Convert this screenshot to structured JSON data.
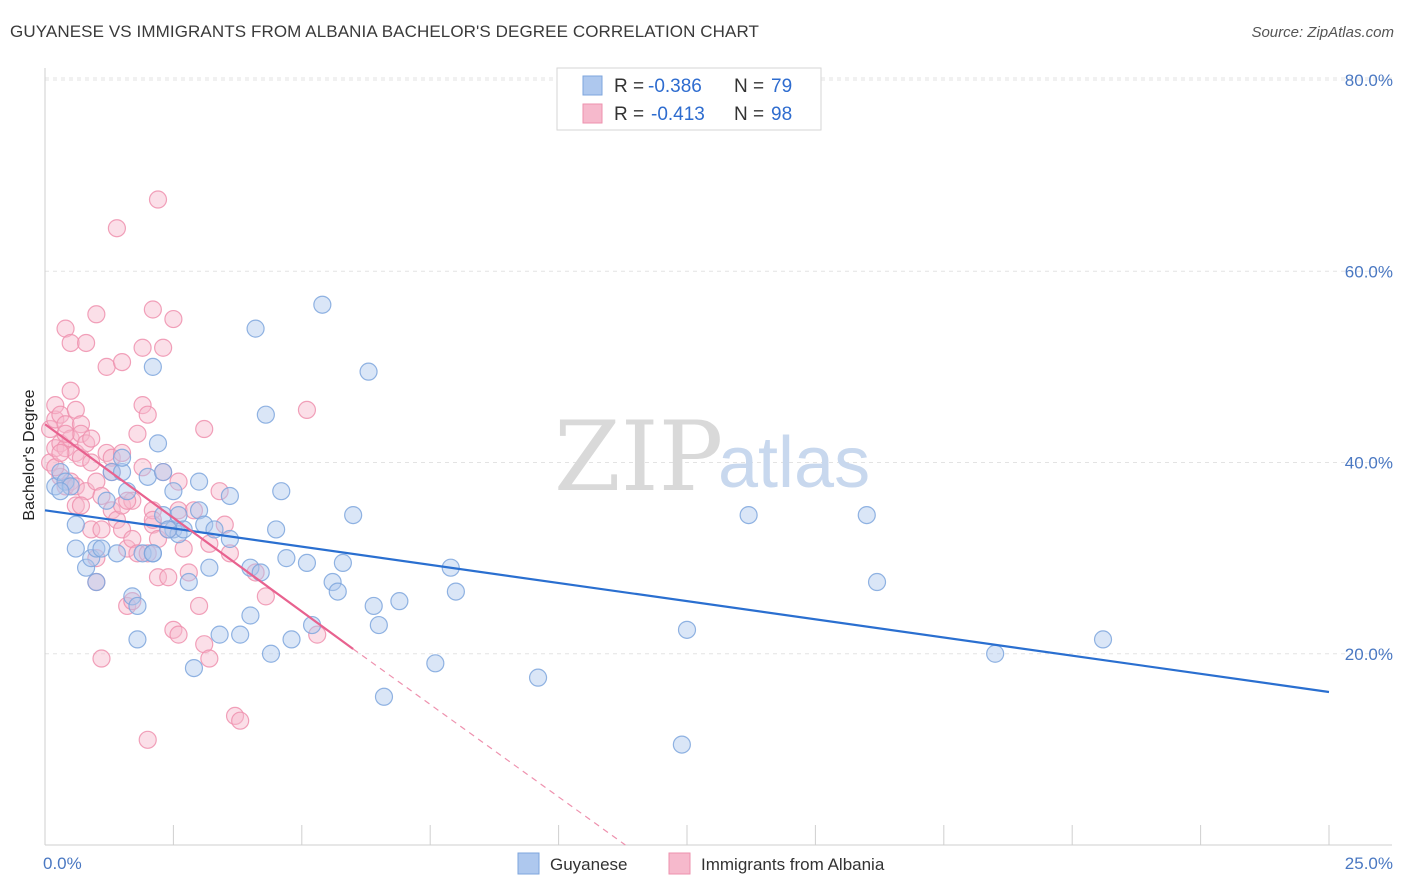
{
  "title": "GUYANESE VS IMMIGRANTS FROM ALBANIA BACHELOR'S DEGREE CORRELATION CHART",
  "source": "Source: ZipAtlas.com",
  "watermark": {
    "zip": "ZIP",
    "atlas": "atlas"
  },
  "colors": {
    "blue_fill": "#aec8ee",
    "blue_stroke": "#7ea6dd",
    "blue_line": "#2a6fd0",
    "pink_fill": "#f6b9cc",
    "pink_stroke": "#ee91ae",
    "pink_line": "#e8628f",
    "grid": "#e3e3e3",
    "accent_text": "#4a78c2"
  },
  "legend": {
    "rows": [
      {
        "r_label": "R =",
        "r_value": "-0.386",
        "n_label": "N =",
        "n_value": "79"
      },
      {
        "r_label": "R =",
        "r_value": "-0.413",
        "n_label": "N =",
        "n_value": "98"
      }
    ]
  },
  "chart_data": {
    "type": "scatter",
    "title": "GUYANESE VS IMMIGRANTS FROM ALBANIA BACHELOR'S DEGREE CORRELATION CHART",
    "xlabel": "",
    "ylabel": "Bachelor's Degree",
    "xlim": [
      0,
      25
    ],
    "ylim": [
      0,
      80
    ],
    "x_tick_labels": [
      "0.0%",
      "25.0%"
    ],
    "y_ticks": [
      20,
      40,
      60,
      80
    ],
    "y_tick_labels": [
      "20.0%",
      "40.0%",
      "60.0%",
      "80.0%"
    ],
    "grid": true,
    "series": [
      {
        "name": "Guyanese",
        "r": -0.386,
        "n": 79,
        "trend": {
          "x": [
            0,
            25
          ],
          "y": [
            35.0,
            16.0
          ],
          "style": "solid"
        },
        "points": [
          [
            0.2,
            37.5
          ],
          [
            0.3,
            39.0
          ],
          [
            0.4,
            38.0
          ],
          [
            0.5,
            37.5
          ],
          [
            0.6,
            33.5
          ],
          [
            0.6,
            31.0
          ],
          [
            0.8,
            29.0
          ],
          [
            0.9,
            30.0
          ],
          [
            1.0,
            31.0
          ],
          [
            1.1,
            31.0
          ],
          [
            1.2,
            36.0
          ],
          [
            1.3,
            39.0
          ],
          [
            1.4,
            30.5
          ],
          [
            1.5,
            39.0
          ],
          [
            1.5,
            40.5
          ],
          [
            1.6,
            37.0
          ],
          [
            1.7,
            26.0
          ],
          [
            1.8,
            25.0
          ],
          [
            1.8,
            21.5
          ],
          [
            1.9,
            30.5
          ],
          [
            2.0,
            38.5
          ],
          [
            2.1,
            30.5
          ],
          [
            2.1,
            30.5
          ],
          [
            2.1,
            50.0
          ],
          [
            2.2,
            42.0
          ],
          [
            2.3,
            39.0
          ],
          [
            2.3,
            34.5
          ],
          [
            2.5,
            37.0
          ],
          [
            2.5,
            33.0
          ],
          [
            2.6,
            32.5
          ],
          [
            2.6,
            34.5
          ],
          [
            2.7,
            33.0
          ],
          [
            2.8,
            27.5
          ],
          [
            2.9,
            18.5
          ],
          [
            3.0,
            38.0
          ],
          [
            3.0,
            35.0
          ],
          [
            3.1,
            33.5
          ],
          [
            3.2,
            29.0
          ],
          [
            3.3,
            33.0
          ],
          [
            3.4,
            22.0
          ],
          [
            3.6,
            36.5
          ],
          [
            3.6,
            32.0
          ],
          [
            3.8,
            22.0
          ],
          [
            4.0,
            29.0
          ],
          [
            4.0,
            24.0
          ],
          [
            4.1,
            54.0
          ],
          [
            4.2,
            28.5
          ],
          [
            4.3,
            45.0
          ],
          [
            4.4,
            20.0
          ],
          [
            4.5,
            33.0
          ],
          [
            4.6,
            37.0
          ],
          [
            4.7,
            30.0
          ],
          [
            4.8,
            21.5
          ],
          [
            5.1,
            29.5
          ],
          [
            5.2,
            23.0
          ],
          [
            5.4,
            56.5
          ],
          [
            5.6,
            27.5
          ],
          [
            5.7,
            26.5
          ],
          [
            5.8,
            29.5
          ],
          [
            6.0,
            34.5
          ],
          [
            6.3,
            49.5
          ],
          [
            6.4,
            25.0
          ],
          [
            6.5,
            23.0
          ],
          [
            6.6,
            15.5
          ],
          [
            6.9,
            25.5
          ],
          [
            7.6,
            19.0
          ],
          [
            7.9,
            29.0
          ],
          [
            8.0,
            26.5
          ],
          [
            9.6,
            17.5
          ],
          [
            12.4,
            10.5
          ],
          [
            12.5,
            22.5
          ],
          [
            13.7,
            34.5
          ],
          [
            16.0,
            34.5
          ],
          [
            16.2,
            27.5
          ],
          [
            18.5,
            20.0
          ],
          [
            20.6,
            21.5
          ],
          [
            0.3,
            37.0
          ],
          [
            1.0,
            27.5
          ],
          [
            2.4,
            33.0
          ]
        ]
      },
      {
        "name": "Immigrants from Albania",
        "r": -0.413,
        "n": 98,
        "trend": {
          "x": [
            0,
            6.0
          ],
          "y": [
            44.0,
            20.5
          ],
          "style": "solid",
          "extension": {
            "x": [
              6.0,
              11.3
            ],
            "y": [
              20.5,
              0.0
            ],
            "style": "dashed"
          }
        },
        "points": [
          [
            0.1,
            43.5
          ],
          [
            0.1,
            40.0
          ],
          [
            0.2,
            44.5
          ],
          [
            0.2,
            41.5
          ],
          [
            0.2,
            46.0
          ],
          [
            0.3,
            42.0
          ],
          [
            0.3,
            38.5
          ],
          [
            0.3,
            45.0
          ],
          [
            0.4,
            37.5
          ],
          [
            0.4,
            44.0
          ],
          [
            0.4,
            41.5
          ],
          [
            0.4,
            54.0
          ],
          [
            0.5,
            42.5
          ],
          [
            0.5,
            47.5
          ],
          [
            0.5,
            52.5
          ],
          [
            0.5,
            38.0
          ],
          [
            0.6,
            45.5
          ],
          [
            0.6,
            41.0
          ],
          [
            0.6,
            37.5
          ],
          [
            0.6,
            35.5
          ],
          [
            0.7,
            44.0
          ],
          [
            0.7,
            43.0
          ],
          [
            0.7,
            40.5
          ],
          [
            0.8,
            52.5
          ],
          [
            0.8,
            42.0
          ],
          [
            0.8,
            37.0
          ],
          [
            0.9,
            40.0
          ],
          [
            0.9,
            33.0
          ],
          [
            1.0,
            55.5
          ],
          [
            1.0,
            38.0
          ],
          [
            1.0,
            30.0
          ],
          [
            1.0,
            27.5
          ],
          [
            1.1,
            36.5
          ],
          [
            1.1,
            19.5
          ],
          [
            1.2,
            50.0
          ],
          [
            1.2,
            41.0
          ],
          [
            1.3,
            40.5
          ],
          [
            1.3,
            35.0
          ],
          [
            1.4,
            64.5
          ],
          [
            1.4,
            34.0
          ],
          [
            1.5,
            50.5
          ],
          [
            1.5,
            41.0
          ],
          [
            1.5,
            35.5
          ],
          [
            1.5,
            33.0
          ],
          [
            1.6,
            31.0
          ],
          [
            1.6,
            25.0
          ],
          [
            1.7,
            36.0
          ],
          [
            1.7,
            32.0
          ],
          [
            1.7,
            25.5
          ],
          [
            1.8,
            30.5
          ],
          [
            1.9,
            52.0
          ],
          [
            1.9,
            46.0
          ],
          [
            1.9,
            39.5
          ],
          [
            2.0,
            45.0
          ],
          [
            2.0,
            30.5
          ],
          [
            2.0,
            11.0
          ],
          [
            2.1,
            56.0
          ],
          [
            2.1,
            33.5
          ],
          [
            2.1,
            35.0
          ],
          [
            2.2,
            67.5
          ],
          [
            2.2,
            32.0
          ],
          [
            2.2,
            28.0
          ],
          [
            2.3,
            52.0
          ],
          [
            2.3,
            39.0
          ],
          [
            2.4,
            28.0
          ],
          [
            2.4,
            33.0
          ],
          [
            2.5,
            22.5
          ],
          [
            2.5,
            55.0
          ],
          [
            2.6,
            35.0
          ],
          [
            2.6,
            22.0
          ],
          [
            2.7,
            31.0
          ],
          [
            2.8,
            28.5
          ],
          [
            2.9,
            35.0
          ],
          [
            3.1,
            43.5
          ],
          [
            3.1,
            21.0
          ],
          [
            3.2,
            31.5
          ],
          [
            3.2,
            19.5
          ],
          [
            3.4,
            37.0
          ],
          [
            3.5,
            33.5
          ],
          [
            3.6,
            30.5
          ],
          [
            3.7,
            13.5
          ],
          [
            3.8,
            13.0
          ],
          [
            4.1,
            28.5
          ],
          [
            4.3,
            26.0
          ],
          [
            5.1,
            45.5
          ],
          [
            5.3,
            22.0
          ],
          [
            0.2,
            39.5
          ],
          [
            0.4,
            43.0
          ],
          [
            0.9,
            42.5
          ],
          [
            1.1,
            33.0
          ],
          [
            1.3,
            39.0
          ],
          [
            2.1,
            34.0
          ],
          [
            3.0,
            25.0
          ],
          [
            2.6,
            38.0
          ],
          [
            1.6,
            36.0
          ],
          [
            0.7,
            35.5
          ],
          [
            1.8,
            43.0
          ],
          [
            0.3,
            41.0
          ]
        ]
      }
    ]
  }
}
